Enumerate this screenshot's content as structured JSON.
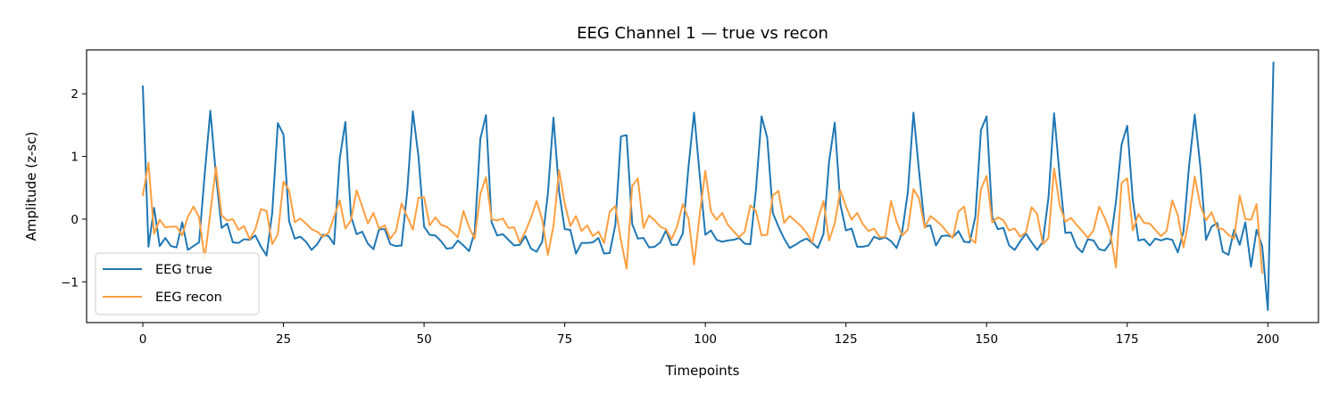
{
  "chart_data": {
    "type": "line",
    "title": "EEG Channel 1 — true vs recon",
    "xlabel": "Timepoints",
    "ylabel": "Amplitude (z-sc)",
    "xlim": [
      -10,
      209
    ],
    "ylim": [
      -1.65,
      2.7
    ],
    "xticks": [
      0,
      25,
      50,
      75,
      100,
      125,
      150,
      175,
      200
    ],
    "yticks": [
      -1,
      0,
      1,
      2
    ],
    "grid": false,
    "legend_position": "lower-left",
    "series": [
      {
        "name": "EEG true",
        "color": "#1f77b4",
        "x_start": 0,
        "values": [
          2.12,
          -0.44,
          0.18,
          -0.43,
          -0.3,
          -0.43,
          -0.45,
          -0.05,
          -0.49,
          -0.43,
          -0.37,
          0.72,
          1.73,
          0.7,
          -0.14,
          -0.07,
          -0.37,
          -0.38,
          -0.32,
          -0.33,
          -0.26,
          -0.44,
          -0.58,
          0.1,
          1.53,
          1.35,
          -0.03,
          -0.31,
          -0.28,
          -0.36,
          -0.49,
          -0.4,
          -0.25,
          -0.27,
          -0.4,
          0.96,
          1.55,
          0.05,
          -0.24,
          -0.2,
          -0.39,
          -0.48,
          -0.16,
          -0.16,
          -0.4,
          -0.43,
          -0.42,
          0.44,
          1.72,
          1.0,
          -0.12,
          -0.25,
          -0.26,
          -0.35,
          -0.47,
          -0.46,
          -0.34,
          -0.42,
          -0.51,
          -0.2,
          1.28,
          1.66,
          -0.05,
          -0.26,
          -0.24,
          -0.33,
          -0.42,
          -0.41,
          -0.27,
          -0.47,
          -0.52,
          -0.36,
          0.4,
          1.62,
          0.44,
          -0.16,
          -0.17,
          -0.55,
          -0.38,
          -0.38,
          -0.37,
          -0.3,
          -0.55,
          -0.54,
          -0.09,
          1.32,
          1.34,
          -0.08,
          -0.31,
          -0.3,
          -0.45,
          -0.44,
          -0.37,
          -0.18,
          -0.41,
          -0.41,
          -0.23,
          0.83,
          1.7,
          0.7,
          -0.25,
          -0.18,
          -0.33,
          -0.36,
          -0.34,
          -0.33,
          -0.3,
          -0.39,
          -0.4,
          0.47,
          1.64,
          1.3,
          0.1,
          -0.12,
          -0.31,
          -0.46,
          -0.41,
          -0.35,
          -0.31,
          -0.38,
          -0.46,
          -0.24,
          0.92,
          1.54,
          0.24,
          -0.18,
          -0.15,
          -0.44,
          -0.44,
          -0.42,
          -0.28,
          -0.32,
          -0.29,
          -0.35,
          -0.46,
          -0.2,
          0.43,
          1.7,
          0.76,
          -0.12,
          -0.1,
          -0.42,
          -0.27,
          -0.26,
          -0.29,
          -0.19,
          -0.36,
          -0.37,
          0.04,
          1.42,
          1.64,
          0.04,
          -0.16,
          -0.14,
          -0.42,
          -0.49,
          -0.35,
          -0.23,
          -0.37,
          -0.49,
          -0.36,
          0.34,
          1.69,
          0.68,
          -0.22,
          -0.21,
          -0.44,
          -0.53,
          -0.32,
          -0.34,
          -0.48,
          -0.5,
          -0.38,
          0.28,
          1.19,
          1.49,
          0.3,
          -0.34,
          -0.32,
          -0.42,
          -0.31,
          -0.34,
          -0.31,
          -0.33,
          -0.53,
          -0.2,
          0.85,
          1.67,
          0.84,
          -0.33,
          -0.12,
          -0.06,
          -0.52,
          -0.57,
          -0.17,
          -0.41,
          -0.05,
          -0.76,
          -0.17,
          -0.43,
          -1.45,
          2.5
        ]
      },
      {
        "name": "EEG recon",
        "color": "#ff9f40",
        "x_start": 0,
        "values": [
          0.38,
          0.9,
          -0.23,
          -0.01,
          -0.13,
          -0.12,
          -0.12,
          -0.26,
          0.04,
          0.2,
          0.03,
          -0.63,
          0.1,
          0.83,
          0.06,
          -0.02,
          0.0,
          -0.17,
          -0.11,
          -0.32,
          -0.16,
          0.16,
          0.13,
          -0.4,
          -0.24,
          0.6,
          0.46,
          -0.05,
          0.01,
          -0.07,
          -0.16,
          -0.2,
          -0.28,
          -0.22,
          0.04,
          0.3,
          -0.15,
          -0.02,
          0.46,
          0.2,
          -0.07,
          0.1,
          -0.15,
          -0.1,
          -0.31,
          -0.19,
          0.25,
          0.04,
          -0.17,
          0.34,
          0.35,
          -0.1,
          0.03,
          -0.09,
          -0.12,
          -0.2,
          -0.29,
          0.13,
          -0.13,
          -0.31,
          0.4,
          0.67,
          0.0,
          -0.02,
          0.01,
          -0.14,
          -0.13,
          -0.37,
          -0.2,
          0.02,
          0.29,
          -0.01,
          -0.57,
          -0.11,
          0.78,
          0.25,
          -0.11,
          0.05,
          -0.19,
          -0.1,
          -0.27,
          -0.2,
          -0.38,
          0.12,
          0.21,
          -0.34,
          -0.79,
          0.53,
          0.65,
          -0.14,
          0.06,
          -0.02,
          -0.12,
          -0.16,
          -0.32,
          -0.11,
          0.24,
          0.01,
          -0.72,
          0.08,
          0.77,
          0.12,
          -0.01,
          0.1,
          -0.09,
          -0.19,
          -0.29,
          -0.2,
          0.22,
          0.13,
          -0.26,
          -0.25,
          0.38,
          0.45,
          -0.06,
          0.05,
          -0.03,
          -0.11,
          -0.22,
          -0.37,
          -0.01,
          0.29,
          -0.34,
          -0.07,
          0.46,
          0.2,
          -0.01,
          0.1,
          -0.08,
          -0.19,
          -0.15,
          -0.29,
          -0.28,
          0.29,
          -0.04,
          -0.26,
          -0.17,
          0.48,
          0.33,
          -0.14,
          0.05,
          -0.02,
          -0.1,
          -0.21,
          -0.3,
          0.12,
          0.2,
          -0.3,
          -0.38,
          0.48,
          0.69,
          -0.05,
          0.03,
          -0.02,
          -0.18,
          -0.15,
          -0.28,
          -0.21,
          0.19,
          0.08,
          -0.4,
          -0.3,
          0.81,
          0.22,
          -0.04,
          0.02,
          -0.09,
          -0.19,
          -0.3,
          -0.18,
          0.2,
          0.02,
          -0.22,
          -0.77,
          0.58,
          0.65,
          -0.18,
          0.08,
          -0.06,
          -0.07,
          -0.17,
          -0.27,
          -0.19,
          0.3,
          0.06,
          -0.45,
          0.02,
          0.68,
          0.22,
          -0.02,
          0.11,
          -0.14,
          -0.16,
          -0.25,
          -0.31,
          0.38,
          0.0,
          -0.01,
          0.24,
          -0.86
        ]
      }
    ]
  }
}
